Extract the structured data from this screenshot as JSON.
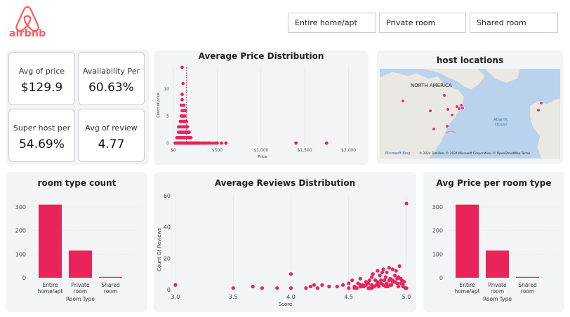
{
  "app": {
    "brand": "airbnb",
    "brand_color": "#ff5a5f"
  },
  "slicers": [
    {
      "label": "Entire home/apt"
    },
    {
      "label": "Private room"
    },
    {
      "label": "Shared room"
    }
  ],
  "kpis": [
    {
      "label": "Avg of price",
      "value": "$129.9"
    },
    {
      "label": "Availability Per",
      "value": "60.63%"
    },
    {
      "label": "Super host per",
      "value": "54.69%"
    },
    {
      "label": "Avg of review",
      "value": "4.77"
    }
  ],
  "price_chart": {
    "title": "Average Price Distribution",
    "xlabel": "Price",
    "ylabel": "Count of price",
    "x_ticks": [
      "$0",
      "$500",
      "$1,000",
      "$1,500",
      "$2,000"
    ],
    "y_ticks": [
      "0",
      "5",
      "10"
    ]
  },
  "map": {
    "title": "host locations",
    "continent_label": "NORTH AMERICA",
    "ocean_label_1": "Atlantic",
    "ocean_label_2": "Ocean",
    "attribution": "© 2024 TomTom, © 2024 Microsoft Corporation, © OpenStreetMap  Terms",
    "logo": "Microsoft Bing"
  },
  "room_count_chart": {
    "title": "room type count",
    "xlabel": "Room Type",
    "y_ticks": [
      "0",
      "100",
      "200",
      "300"
    ],
    "cat_lines": [
      [
        "Entire",
        "home/apt"
      ],
      [
        "Private",
        "room"
      ],
      [
        "Shared",
        "room"
      ]
    ]
  },
  "reviews_chart": {
    "title": "Average Reviews Distribution",
    "xlabel": "Score",
    "ylabel": "Count Of Reviews",
    "x_ticks": [
      "3.0",
      "3.5",
      "4.0",
      "4.5",
      "5.0"
    ],
    "y_ticks": [
      "0",
      "20",
      "40",
      "60"
    ]
  },
  "avg_price_chart": {
    "title": "Avg Price per room type",
    "xlabel": "Room Type",
    "y_ticks": [
      "0",
      "100",
      "200",
      "300"
    ],
    "cat_lines": [
      [
        "Entire",
        "home/apt"
      ],
      [
        "Private",
        "room"
      ],
      [
        "Shared",
        "room"
      ]
    ]
  },
  "chart_data": [
    {
      "type": "scatter",
      "title": "Average Price Distribution",
      "xlabel": "Price",
      "ylabel": "Count of price",
      "xlim": [
        0,
        2100
      ],
      "ylim": [
        0,
        14
      ],
      "color": "#e8245a",
      "reference_line_x": 150,
      "x": [
        20,
        30,
        40,
        50,
        60,
        70,
        80,
        90,
        100,
        110,
        120,
        130,
        140,
        150,
        160,
        170,
        180,
        190,
        200,
        210,
        220,
        230,
        240,
        250,
        260,
        270,
        280,
        290,
        300,
        320,
        340,
        360,
        380,
        400,
        420,
        450,
        480,
        500,
        550,
        600,
        1400,
        1750,
        40,
        50,
        60,
        70,
        80,
        90,
        100,
        110,
        120,
        130,
        140,
        150,
        160,
        170,
        180,
        190,
        200,
        60,
        70,
        80,
        90,
        100,
        110,
        120,
        130,
        140,
        150,
        160,
        170,
        180,
        60,
        70,
        80,
        90,
        100,
        110,
        120,
        130,
        140,
        150,
        160,
        80,
        90,
        100,
        110,
        120,
        130,
        140,
        150,
        90,
        100,
        110,
        120,
        130,
        100,
        110,
        120
      ],
      "y": [
        0,
        0,
        0,
        0,
        0,
        0,
        0,
        0,
        0,
        0,
        0,
        0,
        0,
        0,
        0,
        0,
        0,
        0,
        0,
        0,
        0,
        0,
        0,
        0,
        0,
        0,
        0,
        0,
        0,
        0,
        0,
        0,
        0,
        0,
        0,
        0,
        0,
        0,
        0,
        0,
        0,
        0,
        1,
        1,
        1,
        1,
        1,
        1,
        1,
        1,
        1,
        1,
        1,
        1,
        1,
        1,
        1,
        1,
        1,
        2,
        2,
        2,
        2,
        2,
        2,
        2,
        2,
        2,
        2,
        2,
        2,
        2,
        3,
        3,
        3,
        3,
        3,
        3,
        3,
        3,
        3,
        3,
        3,
        4,
        4,
        4,
        4,
        4,
        4,
        4,
        4,
        5,
        5,
        5,
        5,
        5,
        6,
        6,
        6
      ],
      "extra_points": [
        {
          "x": 100,
          "y": 8
        },
        {
          "x": 100,
          "y": 9
        },
        {
          "x": 110,
          "y": 11
        },
        {
          "x": 100,
          "y": 14
        },
        {
          "x": 120,
          "y": 7
        },
        {
          "x": 140,
          "y": 6
        },
        {
          "x": 90,
          "y": 7
        }
      ]
    },
    {
      "type": "bar",
      "title": "room type count",
      "xlabel": "Room Type",
      "categories": [
        "Entire home/apt",
        "Private room",
        "Shared room"
      ],
      "values": [
        310,
        115,
        3
      ],
      "ylim": [
        0,
        330
      ],
      "color": "#e8245a"
    },
    {
      "type": "scatter",
      "title": "Average Reviews Distribution",
      "xlabel": "Score",
      "ylabel": "Count Of Reviews",
      "xlim": [
        3.0,
        5.0
      ],
      "ylim": [
        0,
        60
      ],
      "color": "#e8245a",
      "x": [
        3.0,
        3.5,
        3.67,
        3.75,
        3.88,
        4.0,
        4.0,
        4.13,
        4.17,
        4.2,
        4.23,
        4.27,
        4.33,
        4.4,
        4.45,
        4.5,
        4.5,
        4.53,
        4.55,
        4.57,
        4.58,
        4.6,
        4.6,
        4.62,
        4.63,
        4.65,
        4.67,
        4.67,
        4.68,
        4.7,
        4.7,
        4.71,
        4.72,
        4.73,
        4.75,
        4.75,
        4.76,
        4.77,
        4.78,
        4.79,
        4.8,
        4.8,
        4.81,
        4.82,
        4.83,
        4.83,
        4.85,
        4.85,
        4.86,
        4.87,
        4.88,
        4.88,
        4.9,
        4.9,
        4.91,
        4.92,
        4.93,
        4.94,
        4.95,
        4.96,
        4.97,
        4.98,
        5.0,
        5.0,
        4.55,
        4.6,
        4.65,
        4.68,
        4.72,
        4.74,
        4.78,
        4.82,
        4.86,
        4.89,
        4.92,
        4.95,
        4.97,
        4.62,
        4.7,
        4.76,
        4.8,
        4.84,
        4.88,
        4.93,
        4.99
      ],
      "y": [
        3,
        1,
        2,
        1,
        1,
        1,
        10,
        1,
        2,
        3,
        1,
        3,
        2,
        2,
        3,
        1,
        4,
        6,
        2,
        1,
        4,
        3,
        7,
        3,
        2,
        5,
        4,
        1,
        6,
        3,
        8,
        10,
        2,
        6,
        5,
        12,
        4,
        9,
        6,
        11,
        3,
        13,
        6,
        8,
        4,
        11,
        6,
        14,
        7,
        3,
        6,
        13,
        9,
        5,
        12,
        7,
        2,
        15,
        4,
        6,
        2,
        5,
        1,
        55,
        1,
        2,
        3,
        1,
        2,
        3,
        4,
        2,
        3,
        5,
        4,
        7,
        3,
        2,
        1,
        2,
        3,
        2,
        5,
        8,
        1
      ]
    },
    {
      "type": "bar",
      "title": "Avg Price per room type",
      "xlabel": "Room Type",
      "categories": [
        "Entire home/apt",
        "Private room",
        "Shared room"
      ],
      "values": [
        310,
        115,
        3
      ],
      "ylim": [
        0,
        330
      ],
      "color": "#e8245a"
    }
  ]
}
